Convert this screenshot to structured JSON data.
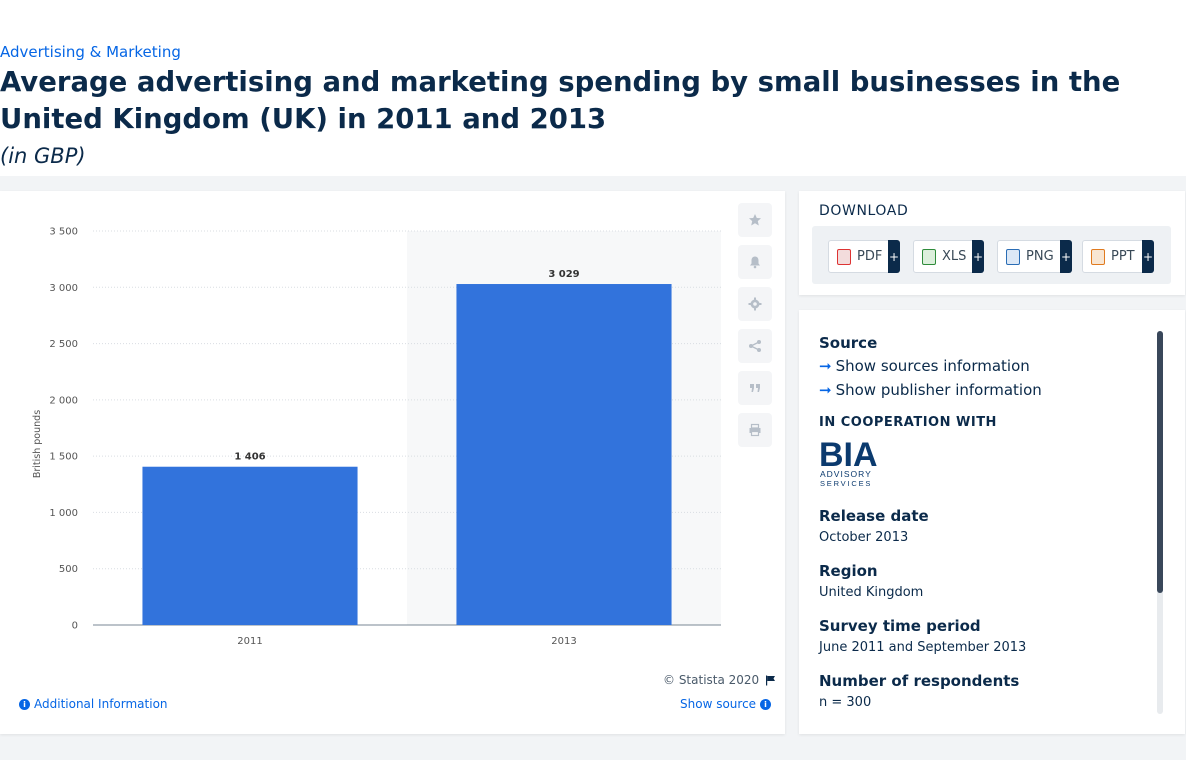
{
  "breadcrumb": "Advertising & Marketing",
  "title": "Average advertising and marketing spending by small businesses in the United Kingdom (UK) in 2011 and 2013",
  "subtitle": "(in GBP)",
  "chart_data": {
    "type": "bar",
    "categories": [
      "2011",
      "2013"
    ],
    "values": [
      1406,
      3029
    ],
    "value_labels": [
      "1 406",
      "3 029"
    ],
    "ylabel": "British pounds",
    "xlabel": "",
    "ylim": [
      0,
      3500
    ],
    "yticks": [
      0,
      500,
      1000,
      1500,
      2000,
      2500,
      3000,
      3500
    ],
    "ytick_labels": [
      "0",
      "500",
      "1 000",
      "1 500",
      "2 000",
      "2 500",
      "3 000",
      "3 500"
    ],
    "bar_color": "#3273dc",
    "grid": true,
    "highlighted_category": "2013"
  },
  "tools": [
    {
      "name": "favorite-star-icon",
      "glyph": "★"
    },
    {
      "name": "notification-bell-icon",
      "glyph": "bell"
    },
    {
      "name": "settings-gear-icon",
      "glyph": "gear"
    },
    {
      "name": "share-icon",
      "glyph": "share"
    },
    {
      "name": "citation-quote-icon",
      "glyph": "❝"
    },
    {
      "name": "print-icon",
      "glyph": "print"
    }
  ],
  "footer": {
    "copyright": "© Statista 2020",
    "show_source": "Show source",
    "additional_info": "Additional Information"
  },
  "download": {
    "heading": "DOWNLOAD",
    "buttons": [
      {
        "label": "PDF",
        "color": "#d33"
      },
      {
        "label": "XLS",
        "color": "#2e8b3a"
      },
      {
        "label": "PNG",
        "color": "#2a6db5"
      },
      {
        "label": "PPT",
        "color": "#e07a1f"
      }
    ],
    "plus": "+"
  },
  "meta": {
    "source_label": "Source",
    "show_sources": "Show sources information",
    "show_publisher": "Show publisher information",
    "cooperation": "IN COOPERATION WITH",
    "logo_text": "BIA",
    "logo_sub": "ADVISORY",
    "logo_sub2": "SERVICES",
    "release_label": "Release date",
    "release_value": "October 2013",
    "region_label": "Region",
    "region_value": "United Kingdom",
    "survey_label": "Survey time period",
    "survey_value": "June 2011 and September 2013",
    "respondents_label": "Number of respondents",
    "respondents_value": "n = 300"
  },
  "colors": {
    "accent": "#0666e5",
    "navy": "#0b2a4a"
  }
}
